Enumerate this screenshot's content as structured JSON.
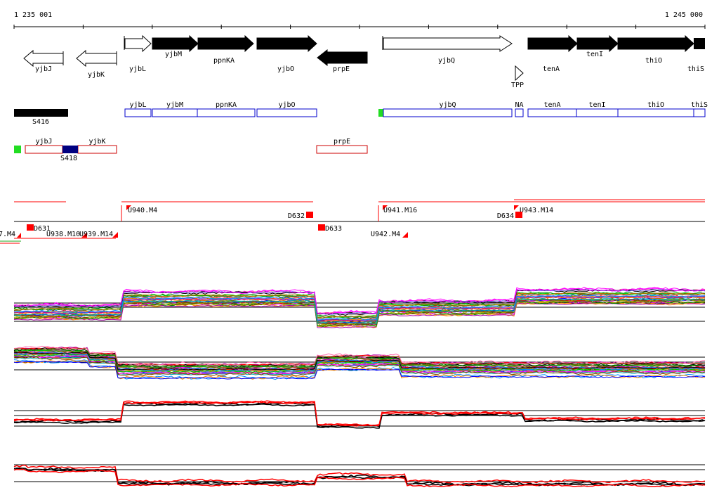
{
  "ruler": {
    "start_label": "1 235 001",
    "end_label": "1 245 000"
  },
  "genes": [
    {
      "name": "yjbJ",
      "strand": "-",
      "filled": false
    },
    {
      "name": "yjbK",
      "strand": "-",
      "filled": false
    },
    {
      "name": "yjbL",
      "strand": "+",
      "filled": false
    },
    {
      "name": "yjbM",
      "strand": "+",
      "filled": true
    },
    {
      "name": "ppnKA",
      "strand": "+",
      "filled": true
    },
    {
      "name": "yjbO",
      "strand": "+",
      "filled": true
    },
    {
      "name": "prpE",
      "strand": "-",
      "filled": true
    },
    {
      "name": "yjbQ",
      "strand": "+",
      "filled": false
    },
    {
      "name": "TPP",
      "strand": "+",
      "filled": false
    },
    {
      "name": "tenA",
      "strand": "+",
      "filled": true
    },
    {
      "name": "tenI",
      "strand": "+",
      "filled": true
    },
    {
      "name": "thiO",
      "strand": "+",
      "filled": true
    },
    {
      "name": "thiS",
      "strand": "+",
      "filled": true
    }
  ],
  "upper_boxes": {
    "label": "S416",
    "color": "#0000cc",
    "start_marker_color": "#22dd22",
    "items": [
      "yjbL",
      "yjbM",
      "ppnKA",
      "yjbO",
      "yjbQ",
      "NA",
      "tenA",
      "tenI",
      "thiO",
      "thiS"
    ]
  },
  "lower_boxes": {
    "label": "S418",
    "color": "#cc0000",
    "start_marker_color": "#22dd22",
    "items": [
      "yjbJ",
      "yjbK",
      "prpE"
    ]
  },
  "segments": [
    {
      "name": "U940.M4"
    },
    {
      "name": "U941.M16"
    },
    {
      "name": "U943.M14"
    },
    {
      "name": "D632"
    },
    {
      "name": "D634"
    },
    {
      "name": "D631"
    },
    {
      "name": "D633"
    },
    {
      "name": "U938.M10"
    },
    {
      "name": "U939.M14"
    },
    {
      "name": "U942.M4"
    },
    {
      "name": "7.M4"
    }
  ],
  "colors": {
    "forward_strand": "#0000cc",
    "reverse_strand": "#cc0000",
    "segment_marker": "#ff0000",
    "panel_line": "#000000",
    "selected_trace": "#ff0000"
  }
}
